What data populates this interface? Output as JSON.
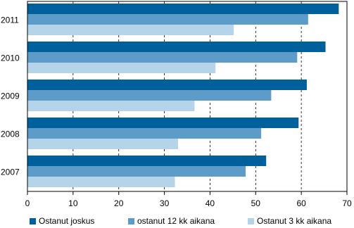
{
  "chart_data": {
    "type": "hbar",
    "categories": [
      "2011",
      "2010",
      "2009",
      "2008",
      "2007"
    ],
    "series": [
      {
        "name": "Ostanut joskus",
        "color": "#00609c",
        "values": [
          68.2,
          65.3,
          61.2,
          59.4,
          52.3
        ]
      },
      {
        "name": "ostanut 12 kk aikana",
        "color": "#5d9cc9",
        "values": [
          61.5,
          59.1,
          53.4,
          51.2,
          47.8
        ]
      },
      {
        "name": "Ostanut 3 kk aikana",
        "color": "#b5d4ea",
        "values": [
          45.2,
          41.2,
          36.6,
          33.0,
          32.3
        ]
      }
    ],
    "xlim": [
      0,
      70
    ],
    "xticks": [
      0,
      10,
      20,
      30,
      40,
      50,
      60,
      70
    ],
    "grid": true,
    "legend": "bottom"
  }
}
